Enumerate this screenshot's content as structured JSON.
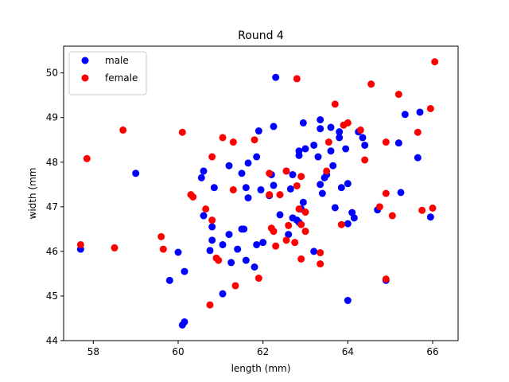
{
  "chart_data": {
    "type": "scatter",
    "title": "Round 4",
    "xlabel": "length (mm)",
    "ylabel": "width (mm",
    "xlim": [
      57.3,
      66.6
    ],
    "ylim": [
      44,
      50.6
    ],
    "xticks": [
      58,
      60,
      62,
      64,
      66
    ],
    "yticks": [
      44,
      45,
      46,
      47,
      48,
      49,
      50
    ],
    "grid": false,
    "legend_position": "top-left",
    "series": [
      {
        "name": "male",
        "color": "#0000ff",
        "points": [
          [
            57.7,
            46.05
          ],
          [
            59.0,
            47.75
          ],
          [
            59.8,
            45.35
          ],
          [
            60.0,
            45.98
          ],
          [
            60.1,
            44.35
          ],
          [
            60.15,
            44.42
          ],
          [
            60.15,
            45.55
          ],
          [
            60.55,
            47.65
          ],
          [
            60.6,
            47.8
          ],
          [
            60.6,
            46.8
          ],
          [
            60.75,
            46.02
          ],
          [
            60.8,
            46.25
          ],
          [
            60.8,
            46.55
          ],
          [
            60.85,
            47.43
          ],
          [
            61.05,
            46.15
          ],
          [
            61.05,
            45.05
          ],
          [
            61.2,
            47.92
          ],
          [
            61.2,
            46.38
          ],
          [
            61.25,
            45.75
          ],
          [
            61.4,
            46.05
          ],
          [
            61.5,
            46.5
          ],
          [
            61.55,
            46.5
          ],
          [
            61.5,
            47.75
          ],
          [
            61.6,
            47.43
          ],
          [
            61.65,
            47.2
          ],
          [
            61.6,
            45.8
          ],
          [
            61.65,
            47.98
          ],
          [
            61.8,
            45.65
          ],
          [
            61.85,
            46.15
          ],
          [
            61.85,
            48.12
          ],
          [
            61.9,
            48.7
          ],
          [
            61.95,
            47.38
          ],
          [
            62.0,
            46.2
          ],
          [
            62.15,
            47.25
          ],
          [
            62.2,
            47.72
          ],
          [
            62.25,
            48.8
          ],
          [
            62.25,
            47.48
          ],
          [
            62.3,
            49.9
          ],
          [
            62.4,
            46.82
          ],
          [
            62.55,
            47.8
          ],
          [
            62.6,
            46.38
          ],
          [
            62.65,
            47.4
          ],
          [
            62.7,
            47.72
          ],
          [
            62.7,
            46.75
          ],
          [
            62.8,
            46.7
          ],
          [
            62.85,
            48.15
          ],
          [
            62.85,
            48.25
          ],
          [
            62.85,
            46.65
          ],
          [
            62.9,
            46.95
          ],
          [
            62.95,
            47.1
          ],
          [
            62.95,
            48.88
          ],
          [
            63.0,
            48.3
          ],
          [
            63.2,
            48.38
          ],
          [
            63.2,
            46.0
          ],
          [
            63.3,
            48.12
          ],
          [
            63.35,
            48.95
          ],
          [
            63.35,
            48.75
          ],
          [
            63.35,
            47.5
          ],
          [
            63.4,
            47.3
          ],
          [
            63.45,
            47.65
          ],
          [
            63.5,
            47.72
          ],
          [
            63.6,
            48.25
          ],
          [
            63.6,
            48.78
          ],
          [
            63.65,
            47.92
          ],
          [
            63.7,
            46.98
          ],
          [
            63.8,
            48.55
          ],
          [
            63.8,
            48.68
          ],
          [
            63.85,
            47.43
          ],
          [
            63.95,
            48.3
          ],
          [
            64.0,
            46.62
          ],
          [
            64.0,
            44.9
          ],
          [
            64.0,
            47.52
          ],
          [
            64.1,
            46.87
          ],
          [
            64.15,
            46.75
          ],
          [
            64.25,
            48.68
          ],
          [
            64.35,
            48.55
          ],
          [
            64.4,
            48.38
          ],
          [
            64.7,
            46.93
          ],
          [
            64.9,
            45.35
          ],
          [
            65.2,
            48.43
          ],
          [
            65.25,
            47.32
          ],
          [
            65.35,
            49.07
          ],
          [
            65.65,
            48.1
          ],
          [
            65.7,
            49.12
          ],
          [
            65.95,
            46.77
          ]
        ]
      },
      {
        "name": "female",
        "color": "#ff0000",
        "points": [
          [
            57.7,
            46.15
          ],
          [
            57.85,
            48.08
          ],
          [
            58.5,
            46.08
          ],
          [
            58.7,
            48.72
          ],
          [
            59.6,
            46.33
          ],
          [
            59.65,
            46.05
          ],
          [
            60.1,
            48.67
          ],
          [
            60.3,
            47.27
          ],
          [
            60.35,
            47.22
          ],
          [
            60.65,
            46.95
          ],
          [
            60.75,
            44.8
          ],
          [
            60.8,
            46.7
          ],
          [
            60.8,
            48.12
          ],
          [
            60.9,
            45.85
          ],
          [
            60.95,
            45.8
          ],
          [
            61.05,
            48.55
          ],
          [
            61.3,
            48.45
          ],
          [
            61.3,
            47.38
          ],
          [
            61.35,
            45.23
          ],
          [
            61.8,
            48.5
          ],
          [
            61.9,
            45.4
          ],
          [
            62.15,
            47.75
          ],
          [
            62.15,
            47.27
          ],
          [
            62.2,
            46.52
          ],
          [
            62.25,
            46.45
          ],
          [
            62.3,
            46.12
          ],
          [
            62.4,
            47.27
          ],
          [
            62.55,
            47.8
          ],
          [
            62.55,
            46.25
          ],
          [
            62.6,
            46.58
          ],
          [
            62.75,
            46.2
          ],
          [
            62.8,
            49.87
          ],
          [
            62.8,
            47.47
          ],
          [
            62.85,
            46.95
          ],
          [
            62.9,
            47.68
          ],
          [
            62.9,
            46.6
          ],
          [
            62.9,
            45.83
          ],
          [
            63.0,
            46.88
          ],
          [
            63.0,
            46.45
          ],
          [
            63.35,
            45.97
          ],
          [
            63.35,
            45.72
          ],
          [
            63.5,
            47.8
          ],
          [
            63.55,
            48.45
          ],
          [
            63.7,
            49.3
          ],
          [
            63.85,
            46.6
          ],
          [
            63.9,
            48.83
          ],
          [
            64.0,
            48.88
          ],
          [
            64.3,
            48.72
          ],
          [
            64.4,
            48.05
          ],
          [
            64.55,
            49.75
          ],
          [
            64.75,
            47.0
          ],
          [
            64.9,
            45.38
          ],
          [
            64.9,
            47.3
          ],
          [
            64.9,
            48.45
          ],
          [
            65.05,
            46.8
          ],
          [
            65.2,
            49.52
          ],
          [
            65.65,
            48.67
          ],
          [
            65.75,
            46.92
          ],
          [
            65.95,
            49.2
          ],
          [
            66.0,
            46.97
          ],
          [
            66.05,
            50.25
          ]
        ]
      }
    ]
  }
}
